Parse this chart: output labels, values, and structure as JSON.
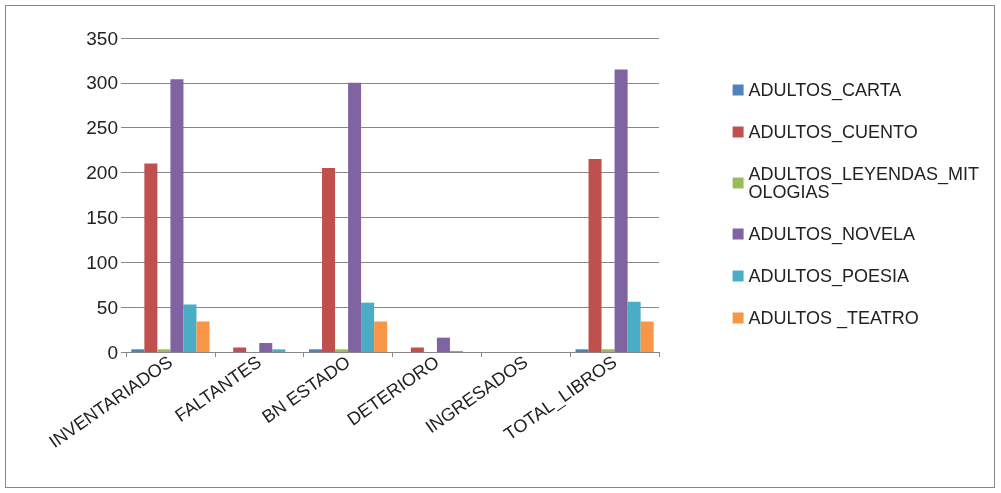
{
  "chart_data": {
    "type": "bar",
    "categories": [
      "INVENTARIADOS",
      "FALTANTES",
      "BN ESTADO",
      "DETERIORO",
      "INGRESADOS",
      "TOTAL_LIBROS"
    ],
    "series": [
      {
        "name": "ADULTOS_CARTA",
        "color": "#4f81bd",
        "values": [
          3,
          0,
          3,
          0,
          0,
          3
        ]
      },
      {
        "name": "ADULTOS_CUENTO",
        "color": "#c0504d",
        "values": [
          210,
          5,
          205,
          5,
          0,
          215
        ]
      },
      {
        "name": "ADULTOS_LEYENDAS_MITOLOGIAS",
        "color": "#9bbb59",
        "values": [
          3,
          0,
          3,
          0,
          0,
          3
        ]
      },
      {
        "name": "ADULTOS_NOVELA",
        "color": "#8064a2",
        "values": [
          304,
          10,
          300,
          16,
          0,
          315
        ]
      },
      {
        "name": "ADULTOS_POESIA",
        "color": "#4bacc6",
        "values": [
          53,
          3,
          55,
          1,
          0,
          56
        ]
      },
      {
        "name": "ADULTOS _TEATRO",
        "color": "#f79646",
        "values": [
          34,
          0,
          34,
          0,
          0,
          34
        ]
      }
    ],
    "ylim": [
      0,
      350
    ],
    "yticks": [
      0,
      50,
      100,
      150,
      200,
      250,
      300,
      350
    ],
    "grid": "y",
    "legend": "right"
  }
}
